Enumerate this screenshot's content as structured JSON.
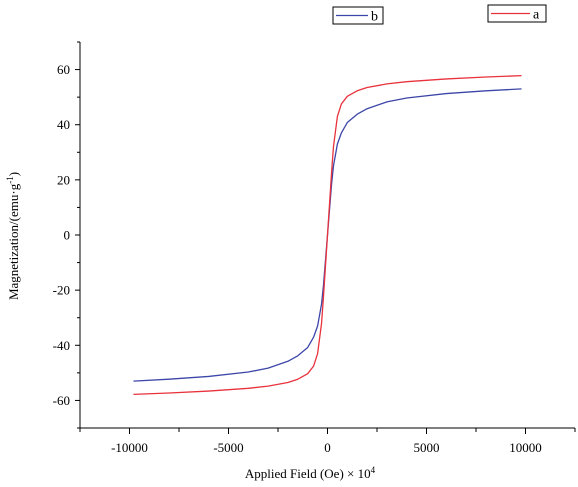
{
  "chart_data": {
    "type": "line",
    "title": "",
    "xlabel": "Applied Field (Oe) × 10",
    "xlabel_superscript": "4",
    "ylabel": "Magnetization/(emu·g",
    "ylabel_superscript": "-1",
    "ylabel_suffix": ")",
    "xlim": [
      -12500,
      12500
    ],
    "ylim": [
      -70,
      70
    ],
    "x_ticks": [
      -10000,
      -5000,
      0,
      5000,
      10000
    ],
    "x_tick_labels": [
      "-10000",
      "-5000",
      "0",
      "5000",
      "10000"
    ],
    "y_ticks": [
      -60,
      -40,
      -20,
      0,
      20,
      40,
      60
    ],
    "y_tick_labels": [
      "-60",
      "-40",
      "-20",
      "0",
      "20",
      "40",
      "60"
    ],
    "grid": false,
    "legend": "top, separate boxes",
    "series": [
      {
        "name": "a",
        "color": "#e8323c",
        "x": [
          -9800,
          -8000,
          -6000,
          -4000,
          -3000,
          -2000,
          -1500,
          -1000,
          -700,
          -500,
          -300,
          -200,
          -100,
          0,
          100,
          200,
          300,
          500,
          700,
          1000,
          1500,
          2000,
          3000,
          4000,
          6000,
          8000,
          9800
        ],
        "y": [
          -57.8,
          -57.3,
          -56.6,
          -55.6,
          -54.8,
          -53.5,
          -52.3,
          -50.3,
          -47.5,
          -43.0,
          -32.0,
          -22.0,
          -11.0,
          0,
          11.0,
          22.0,
          32.0,
          43.0,
          47.5,
          50.3,
          52.3,
          53.5,
          54.8,
          55.6,
          56.6,
          57.3,
          57.8
        ]
      },
      {
        "name": "b",
        "color": "#3c46a8",
        "x": [
          -9800,
          -8000,
          -6000,
          -4000,
          -3000,
          -2000,
          -1500,
          -1000,
          -700,
          -500,
          -300,
          -200,
          -100,
          0,
          100,
          200,
          300,
          500,
          700,
          1000,
          1500,
          2000,
          3000,
          4000,
          6000,
          8000,
          9800
        ],
        "y": [
          -53.0,
          -52.3,
          -51.3,
          -49.7,
          -48.3,
          -45.8,
          -43.8,
          -40.8,
          -37.0,
          -33.0,
          -25.0,
          -18.0,
          -9.0,
          0,
          9.0,
          18.0,
          25.0,
          33.0,
          37.0,
          40.8,
          43.8,
          45.8,
          48.3,
          49.7,
          51.3,
          52.3,
          53.0
        ]
      }
    ]
  }
}
